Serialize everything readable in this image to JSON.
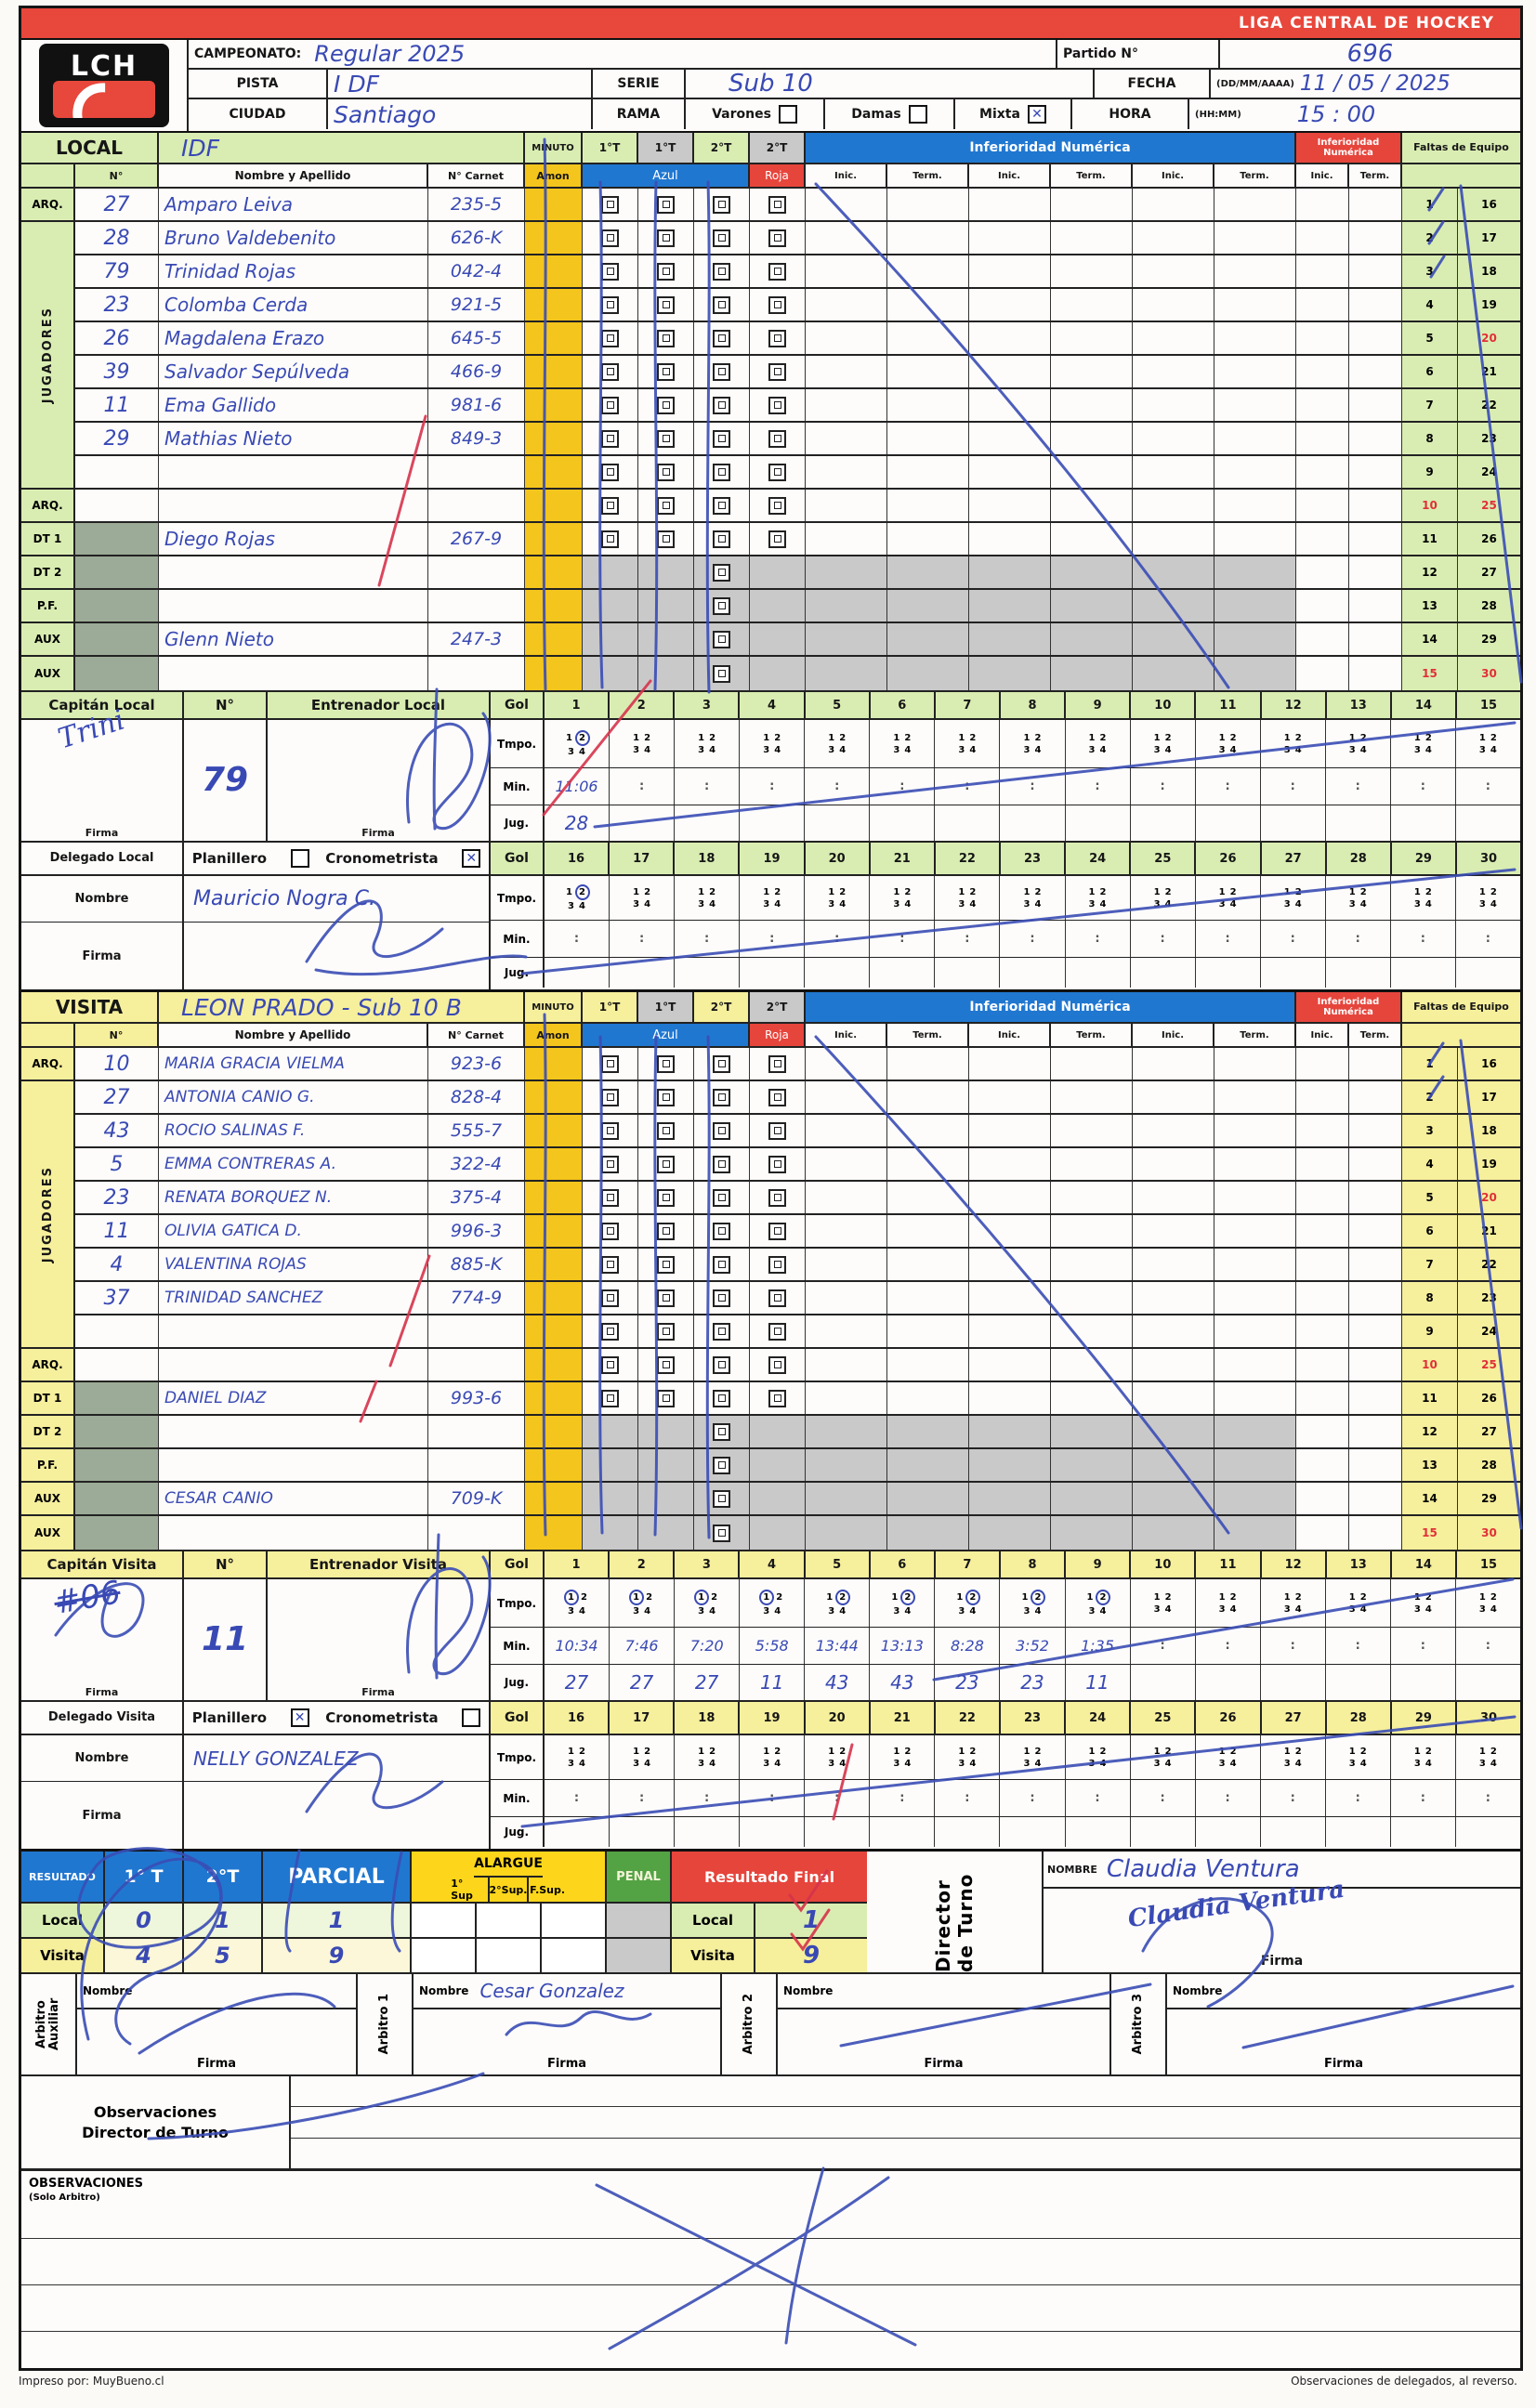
{
  "header": {
    "title": "LIGA CENTRAL DE HOCKEY"
  },
  "logo": {
    "text": "LCH"
  },
  "meta": {
    "campeonato_label": "CAMPEONATO:",
    "campeonato_value": "Regular  2025",
    "partido_label": "Partido N°",
    "partido_value": "696",
    "pista_label": "PISTA",
    "pista_value": "I DF",
    "serie_label": "SERIE",
    "serie_value": "Sub 10",
    "fecha_label": "FECHA",
    "fecha_format": "(DD/MM/AAAA)",
    "fecha_value": "11 / 05 / 2025",
    "ciudad_label": "CIUDAD",
    "ciudad_value": "Santiago",
    "rama_label": "RAMA",
    "rama_options": [
      {
        "label": "Varones",
        "checked": false
      },
      {
        "label": "Damas",
        "checked": false
      },
      {
        "label": "Mixta",
        "checked": true
      }
    ],
    "hora_label": "HORA",
    "hora_format": "(HH:MM)",
    "hora_value": "15 : 00"
  },
  "table_labels": {
    "minuto": "MINUTO",
    "periods": [
      "1°T",
      "1°T",
      "2°T",
      "2°T"
    ],
    "inferioridad": "Inferioridad Numérica",
    "faltas": "Faltas de Equipo",
    "num": "N°",
    "nombre": "Nombre y Apellido",
    "carnet": "N° Carnet",
    "amon": "Amon",
    "azul": "Azul",
    "roja": "Roja",
    "inic": "Inic.",
    "term": "Term.",
    "jugadores": "JUGADORES",
    "arq": "ARQ.",
    "roles": [
      "DT 1",
      "DT 2",
      "P.F.",
      "AUX",
      "AUX"
    ],
    "gol": "Gol",
    "tmpo": "Tmpo.",
    "min": "Min.",
    "jug": "Jug.",
    "firma": "Firma",
    "nombre_label": "Nombre",
    "planillero": "Planillero",
    "cronometrista": "Cronometrista",
    "num_label": "N°"
  },
  "faltas": {
    "red_left": [
      "10",
      "15"
    ],
    "red_right": [
      "20",
      "25",
      "30"
    ]
  },
  "local": {
    "section_label": "LOCAL",
    "team": "IDF",
    "roster": [
      {
        "num": "27",
        "name": "Amparo Leiva",
        "carnet": "235-5",
        "kind": "p",
        "sage": false
      },
      {
        "num": "28",
        "name": "Bruno Valdebenito",
        "carnet": "626-K",
        "kind": "p",
        "sage": false
      },
      {
        "num": "79",
        "name": "Trinidad Rojas",
        "carnet": "042-4",
        "kind": "p",
        "sage": false
      },
      {
        "num": "23",
        "name": "Colomba Cerda",
        "carnet": "921-5",
        "kind": "p",
        "sage": false
      },
      {
        "num": "26",
        "name": "Magdalena Erazo",
        "carnet": "645-5",
        "kind": "p",
        "sage": false
      },
      {
        "num": "39",
        "name": "Salvador Sepúlveda",
        "carnet": "466-9",
        "kind": "p",
        "sage": false
      },
      {
        "num": "11",
        "name": "Ema Gallido",
        "carnet": "981-6",
        "kind": "p",
        "sage": false
      },
      {
        "num": "29",
        "name": "Mathias Nieto",
        "carnet": "849-3",
        "kind": "p",
        "sage": false
      },
      {
        "num": "",
        "name": "",
        "carnet": "",
        "kind": "p",
        "sage": false
      },
      {
        "num": "",
        "name": "",
        "carnet": "",
        "kind": "p",
        "sage": false
      },
      {
        "num": "",
        "name": "Diego Rojas",
        "carnet": "267-9",
        "kind": "p",
        "sage": true
      },
      {
        "num": "",
        "name": "",
        "carnet": "",
        "kind": "g",
        "sage": true
      },
      {
        "num": "",
        "name": "",
        "carnet": "",
        "kind": "g",
        "sage": true
      },
      {
        "num": "",
        "name": "Glenn Nieto",
        "carnet": "247-3",
        "kind": "g",
        "sage": true
      },
      {
        "num": "",
        "name": "",
        "carnet": "",
        "kind": "g",
        "sage": true
      }
    ],
    "capitan_label": "Capitán Local",
    "capitan_name": "Trini",
    "capitan_num": "79",
    "entrenador_label": "Entrenador Local",
    "goles1": {
      "1": {
        "tmpo": "2",
        "min": "11:06",
        "jug": "28"
      }
    },
    "goles2": {
      "16": {
        "tmpo": "2",
        "min": "",
        "jug": ""
      }
    },
    "delegado_label": "Delegado Local",
    "delegado": {
      "planillero_checked": false,
      "cronometrista_checked": true,
      "nombre": "Mauricio Nogra C."
    }
  },
  "visita": {
    "section_label": "VISITA",
    "team": "LEON PRADO - Sub 10 B",
    "roster": [
      {
        "num": "10",
        "name": "MARIA GRACIA VIELMA",
        "carnet": "923-6",
        "kind": "p",
        "sage": false
      },
      {
        "num": "27",
        "name": "ANTONIA CANIO G.",
        "carnet": "828-4",
        "kind": "p",
        "sage": false
      },
      {
        "num": "43",
        "name": "ROCIO SALINAS F.",
        "carnet": "555-7",
        "kind": "p",
        "sage": false
      },
      {
        "num": "5",
        "name": "EMMA CONTRERAS A.",
        "carnet": "322-4",
        "kind": "p",
        "sage": false
      },
      {
        "num": "23",
        "name": "RENATA BORQUEZ N.",
        "carnet": "375-4",
        "kind": "p",
        "sage": false
      },
      {
        "num": "11",
        "name": "OLIVIA GATICA D.",
        "carnet": "996-3",
        "kind": "p",
        "sage": false
      },
      {
        "num": "4",
        "name": "VALENTINA ROJAS",
        "carnet": "885-K",
        "kind": "p",
        "sage": false
      },
      {
        "num": "37",
        "name": "TRINIDAD SANCHEZ",
        "carnet": "774-9",
        "kind": "p",
        "sage": false
      },
      {
        "num": "",
        "name": "",
        "carnet": "",
        "kind": "p",
        "sage": false
      },
      {
        "num": "",
        "name": "",
        "carnet": "",
        "kind": "p",
        "sage": false
      },
      {
        "num": "",
        "name": "DANIEL DIAZ",
        "carnet": "993-6",
        "kind": "p",
        "sage": true
      },
      {
        "num": "",
        "name": "",
        "carnet": "",
        "kind": "g",
        "sage": true
      },
      {
        "num": "",
        "name": "",
        "carnet": "",
        "kind": "g",
        "sage": true
      },
      {
        "num": "",
        "name": "CESAR CANIO",
        "carnet": "709-K",
        "kind": "g",
        "sage": true
      },
      {
        "num": "",
        "name": "",
        "carnet": "",
        "kind": "g",
        "sage": true
      }
    ],
    "capitan_label": "Capitán Visita",
    "capitan_name": "#06",
    "capitan_num": "11",
    "entrenador_label": "Entrenador Visita",
    "goles1": {
      "1": {
        "tmpo": "1",
        "min": "10:34",
        "jug": "27"
      },
      "2": {
        "tmpo": "1",
        "min": "7:46",
        "jug": "27"
      },
      "3": {
        "tmpo": "1",
        "min": "7:20",
        "jug": "27"
      },
      "4": {
        "tmpo": "1",
        "min": "5:58",
        "jug": "11"
      },
      "5": {
        "tmpo": "2",
        "min": "13:44",
        "jug": "43"
      },
      "6": {
        "tmpo": "2",
        "min": "13:13",
        "jug": "43"
      },
      "7": {
        "tmpo": "2",
        "min": "8:28",
        "jug": "23"
      },
      "8": {
        "tmpo": "2",
        "min": "3:52",
        "jug": "23"
      },
      "9": {
        "tmpo": "2",
        "min": "1:35",
        "jug": "11"
      }
    },
    "goles2": {},
    "delegado_label": "Delegado Visita",
    "delegado": {
      "planillero_checked": true,
      "cronometrista_checked": false,
      "nombre": "NELLY GONZALEZ"
    }
  },
  "resultado": {
    "label": "RESULTADO",
    "t1": "1° T",
    "t2": "2°T",
    "parcial": "PARCIAL",
    "alargue": "ALARGUE",
    "alargue_subs": [
      "1° Sup",
      "2°Sup.",
      "F.Sup."
    ],
    "penal": "PENAL",
    "final_label": "Resultado Final",
    "local_label": "Local",
    "visita_label": "Visita",
    "local": {
      "t1": "0",
      "t2": "1",
      "parcial": "1",
      "final": "1"
    },
    "visita": {
      "t1": "4",
      "t2": "5",
      "parcial": "9",
      "final": "9"
    },
    "director": {
      "label": "Director de Turno",
      "nombre_label": "NOMBRE",
      "nombre": "Claudia Ventura",
      "firma_label": "Firma",
      "firma": "Claudia Ventura"
    }
  },
  "arbitros": [
    {
      "label": "Arbitro Auxiliar",
      "nombre_label": "Nombre",
      "firma_label": "Firma",
      "nombre": ""
    },
    {
      "label": "Arbitro 1",
      "nombre_label": "Nombre",
      "firma_label": "Firma",
      "nombre": "Cesar Gonzalez"
    },
    {
      "label": "Arbitro 2",
      "nombre_label": "Nombre",
      "firma_label": "Firma",
      "nombre": ""
    },
    {
      "label": "Arbitro 3",
      "nombre_label": "Nombre",
      "firma_label": "Firma",
      "nombre": ""
    }
  ],
  "observaciones": {
    "director_label_1": "Observaciones",
    "director_label_2": "Director de Turno",
    "arbitro_label": "OBSERVACIONES",
    "arbitro_sub": "(Solo Arbitro)"
  },
  "footer": {
    "left": "Impreso por: MuyBueno.cl",
    "right": "Observaciones de delegados, al reverso."
  }
}
